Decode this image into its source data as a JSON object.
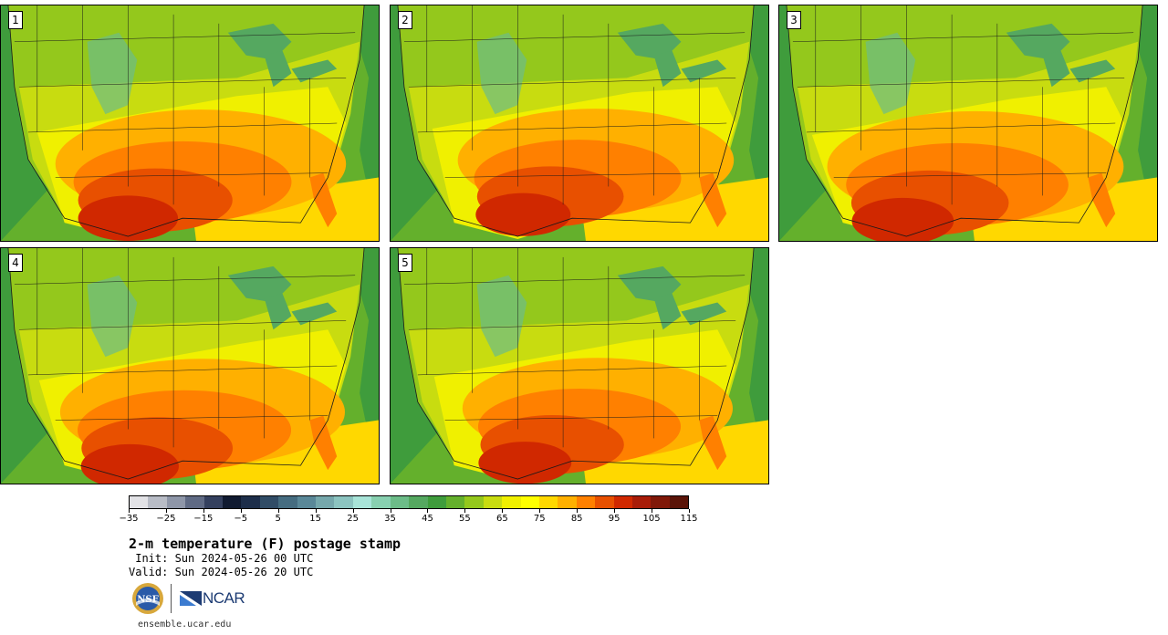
{
  "panels": [
    {
      "label": "1"
    },
    {
      "label": "2"
    },
    {
      "label": "3"
    },
    {
      "label": "4"
    },
    {
      "label": "5"
    }
  ],
  "colorbar": {
    "colors": [
      "#e2e2e6",
      "#b8bcc6",
      "#8e96a8",
      "#5f6a84",
      "#34405e",
      "#101a30",
      "#1d2e4a",
      "#304c66",
      "#456c80",
      "#5a8898",
      "#76a8ac",
      "#8cc4c0",
      "#a8e4d8",
      "#88d0b0",
      "#6cbc88",
      "#55a860",
      "#3f9c3c",
      "#64b02c",
      "#94c81c",
      "#c8dc10",
      "#f0f000",
      "#ffff00",
      "#ffd800",
      "#ffb000",
      "#ff8000",
      "#e85000",
      "#d02800",
      "#a81c08",
      "#801808",
      "#5a1408"
    ],
    "tick_labels": [
      "−35",
      "−25",
      "−15",
      "−5",
      "5",
      "15",
      "25",
      "35",
      "45",
      "55",
      "65",
      "75",
      "85",
      "95",
      "105",
      "115"
    ]
  },
  "title": "2-m temperature (F) postage stamp",
  "init": " Init: Sun 2024-05-26 00 UTC",
  "valid": "Valid: Sun 2024-05-26 20 UTC",
  "logos": {
    "nsf": "NSF",
    "ncar": "NCAR"
  },
  "site": "ensemble.ucar.edu",
  "map_colors": {
    "ocean_deep": "#3f9c3c",
    "ocean_mid": "#64b02c",
    "north": "#94c81c",
    "mid": "#c8dc10",
    "warm": "#f0f000",
    "gulf": "#ffd800",
    "hot1": "#ffb000",
    "hot2": "#ff8000",
    "hot3": "#e85000",
    "hot4": "#d02800",
    "mountain": "#6cbc88",
    "lake": "#55a860",
    "border": "#1a1a1a"
  }
}
